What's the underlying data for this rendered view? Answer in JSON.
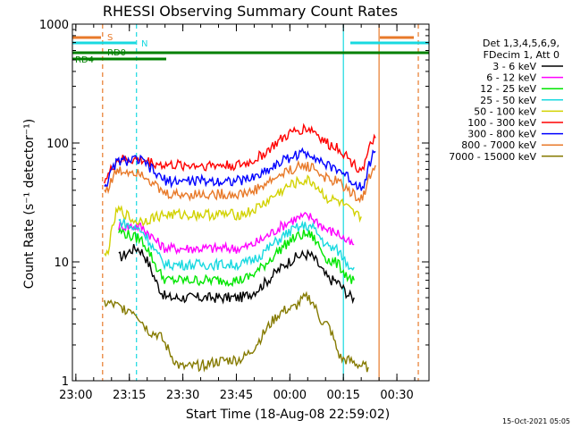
{
  "chart_data": {
    "type": "line",
    "title": "RHESSI Observing Summary Count Rates",
    "xlabel": "Start Time (18-Aug-08 22:59:02)",
    "ylabel": "Count Rate (s⁻¹ detector⁻¹)",
    "yscale": "log",
    "xlim": [
      "22:59:02",
      "00:39:00"
    ],
    "ylim": [
      1,
      1000
    ],
    "x_ticks": [
      "23:00",
      "23:15",
      "23:30",
      "23:45",
      "00:00",
      "00:15",
      "00:30"
    ],
    "y_ticks": [
      "1",
      "10",
      "100",
      "1000"
    ],
    "legend_header": [
      "Det 1,3,4,5,6,9,",
      "FDecim 1, Att 0"
    ],
    "legend_position": "right",
    "timestamp": "15-Oct-2021 05:05",
    "flag_labels": {
      "saa": "S",
      "night": "N",
      "rd0": "RD0",
      "rd4": "RD4"
    },
    "vertical_markers": [
      {
        "time": "23:07:30",
        "color": "#e87a2a",
        "style": "dashed"
      },
      {
        "time": "23:17:00",
        "color": "#18d9e0",
        "style": "dashed"
      },
      {
        "time": "00:15:00",
        "color": "#18d9e0",
        "style": "solid"
      },
      {
        "time": "00:25:00",
        "color": "#e87a2a",
        "style": "solid"
      },
      {
        "time": "00:36:00",
        "color": "#e87a2a",
        "style": "dashed"
      }
    ],
    "series": [
      {
        "name": "3 - 6 keV",
        "color": "#000000",
        "time_range": [
          "23:12:00",
          "00:18:00"
        ],
        "values": [
          {
            "t": "23:12:00",
            "v": 11
          },
          {
            "t": "23:17:00",
            "v": 13
          },
          {
            "t": "23:26:00",
            "v": 5
          },
          {
            "t": "23:45:00",
            "v": 5
          },
          {
            "t": "00:05:00",
            "v": 11.5
          },
          {
            "t": "00:12:00",
            "v": 7
          },
          {
            "t": "00:18:00",
            "v": 5
          }
        ]
      },
      {
        "name": "6 - 12 keV",
        "color": "#ff00ff",
        "time_range": [
          "23:12:00",
          "00:18:00"
        ],
        "values": [
          {
            "t": "23:12:00",
            "v": 20
          },
          {
            "t": "23:17:00",
            "v": 20
          },
          {
            "t": "23:26:00",
            "v": 13
          },
          {
            "t": "23:45:00",
            "v": 13
          },
          {
            "t": "00:05:00",
            "v": 24
          },
          {
            "t": "00:12:00",
            "v": 18
          },
          {
            "t": "00:18:00",
            "v": 14
          }
        ]
      },
      {
        "name": "12 - 25 keV",
        "color": "#00e600",
        "time_range": [
          "23:12:00",
          "00:18:00"
        ],
        "values": [
          {
            "t": "23:12:00",
            "v": 18
          },
          {
            "t": "23:17:00",
            "v": 16
          },
          {
            "t": "23:26:00",
            "v": 7
          },
          {
            "t": "23:45:00",
            "v": 7
          },
          {
            "t": "00:05:00",
            "v": 17
          },
          {
            "t": "00:12:00",
            "v": 10
          },
          {
            "t": "00:18:00",
            "v": 7
          }
        ]
      },
      {
        "name": "25 - 50 keV",
        "color": "#18d9e0",
        "time_range": [
          "23:12:00",
          "00:18:00"
        ],
        "values": [
          {
            "t": "23:12:00",
            "v": 22
          },
          {
            "t": "23:17:00",
            "v": 19
          },
          {
            "t": "23:26:00",
            "v": 9.5
          },
          {
            "t": "23:45:00",
            "v": 9.5
          },
          {
            "t": "00:05:00",
            "v": 20
          },
          {
            "t": "00:12:00",
            "v": 13
          },
          {
            "t": "00:18:00",
            "v": 9
          }
        ]
      },
      {
        "name": "50 - 100 keV",
        "color": "#d2d200",
        "time_range": [
          "23:08:00",
          "00:20:00"
        ],
        "values": [
          {
            "t": "23:08:00",
            "v": 11
          },
          {
            "t": "23:12:00",
            "v": 27
          },
          {
            "t": "23:17:00",
            "v": 22
          },
          {
            "t": "23:26:00",
            "v": 25
          },
          {
            "t": "23:45:00",
            "v": 25
          },
          {
            "t": "00:05:00",
            "v": 48
          },
          {
            "t": "00:12:00",
            "v": 33
          },
          {
            "t": "00:20:00",
            "v": 24
          }
        ]
      },
      {
        "name": "100 - 300 keV",
        "color": "#ff0000",
        "time_range": [
          "23:08:00",
          "00:24:00"
        ],
        "values": [
          {
            "t": "23:08:00",
            "v": 50
          },
          {
            "t": "23:12:00",
            "v": 72
          },
          {
            "t": "23:17:00",
            "v": 72
          },
          {
            "t": "23:26:00",
            "v": 65
          },
          {
            "t": "23:45:00",
            "v": 65
          },
          {
            "t": "00:05:00",
            "v": 132
          },
          {
            "t": "00:12:00",
            "v": 95
          },
          {
            "t": "00:20:00",
            "v": 62
          },
          {
            "t": "00:24:00",
            "v": 110
          }
        ]
      },
      {
        "name": "300 - 800 keV",
        "color": "#0000ff",
        "time_range": [
          "23:08:00",
          "00:24:00"
        ],
        "values": [
          {
            "t": "23:08:00",
            "v": 45
          },
          {
            "t": "23:12:00",
            "v": 70
          },
          {
            "t": "23:17:00",
            "v": 72
          },
          {
            "t": "23:26:00",
            "v": 48
          },
          {
            "t": "23:45:00",
            "v": 48
          },
          {
            "t": "00:05:00",
            "v": 82
          },
          {
            "t": "00:12:00",
            "v": 62
          },
          {
            "t": "00:20:00",
            "v": 44
          },
          {
            "t": "00:24:00",
            "v": 85
          }
        ]
      },
      {
        "name": "800 - 7000 keV",
        "color": "#e87a2a",
        "time_range": [
          "23:08:00",
          "00:24:00"
        ],
        "values": [
          {
            "t": "23:08:00",
            "v": 40
          },
          {
            "t": "23:12:00",
            "v": 58
          },
          {
            "t": "23:17:00",
            "v": 58
          },
          {
            "t": "23:26:00",
            "v": 37
          },
          {
            "t": "23:45:00",
            "v": 37
          },
          {
            "t": "00:05:00",
            "v": 64
          },
          {
            "t": "00:12:00",
            "v": 48
          },
          {
            "t": "00:20:00",
            "v": 35
          },
          {
            "t": "00:24:00",
            "v": 65
          }
        ]
      },
      {
        "name": "7000 - 15000 keV",
        "color": "#857a00",
        "time_range": [
          "23:08:00",
          "00:22:00"
        ],
        "values": [
          {
            "t": "23:08:00",
            "v": 4.5
          },
          {
            "t": "23:15:00",
            "v": 4
          },
          {
            "t": "23:22:00",
            "v": 2.5
          },
          {
            "t": "23:30:00",
            "v": 1.3
          },
          {
            "t": "23:45:00",
            "v": 1.5
          },
          {
            "t": "00:00:00",
            "v": 4
          },
          {
            "t": "00:05:00",
            "v": 5
          },
          {
            "t": "00:10:00",
            "v": 3
          },
          {
            "t": "00:15:00",
            "v": 1.5
          },
          {
            "t": "00:22:00",
            "v": 1.3
          }
        ]
      }
    ]
  }
}
